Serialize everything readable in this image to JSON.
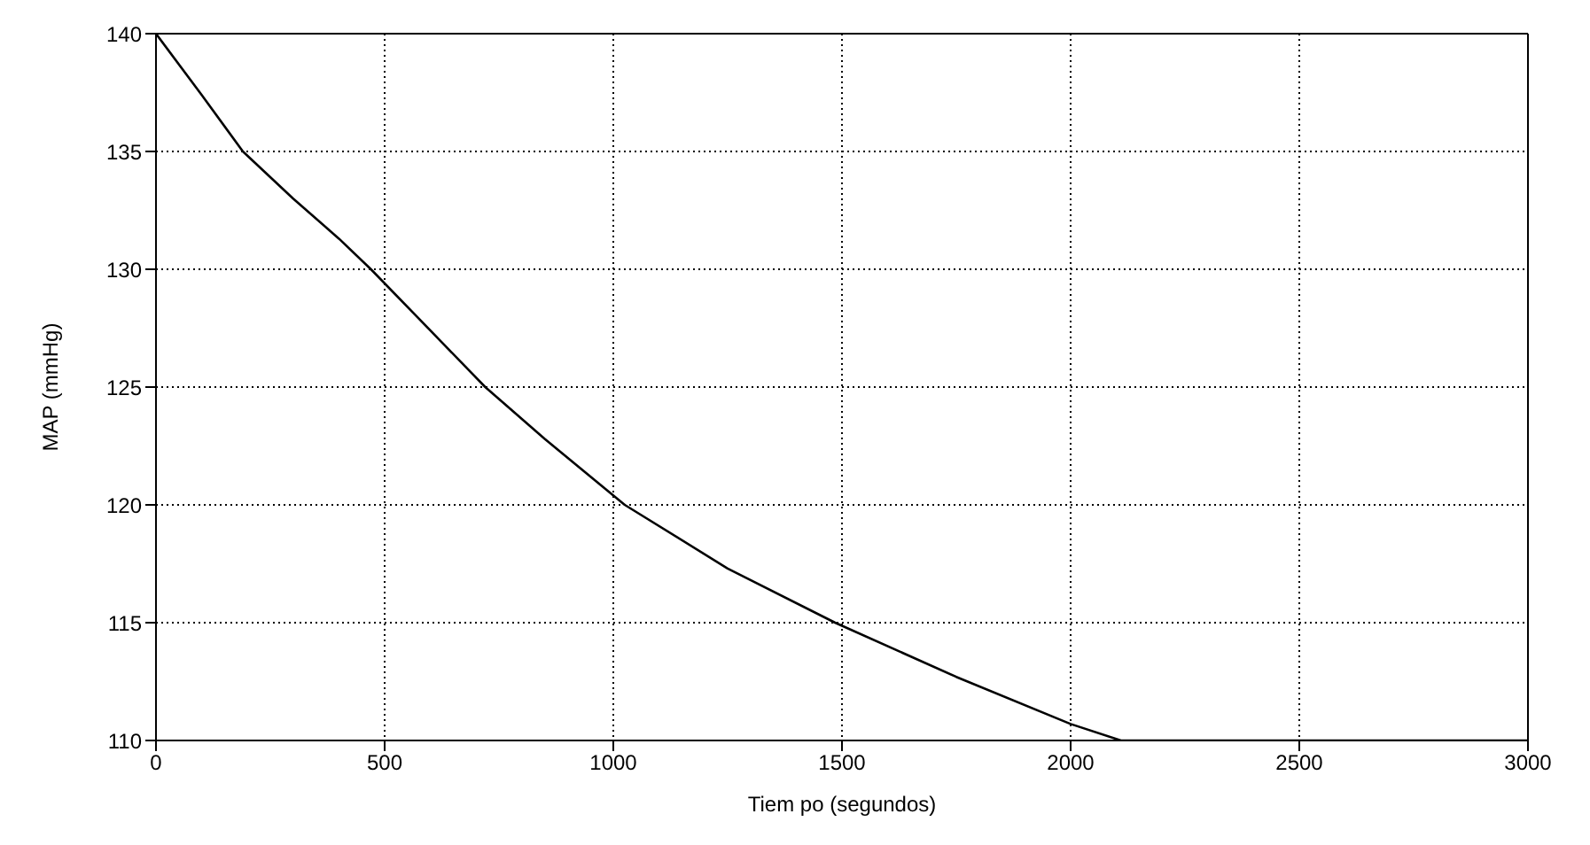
{
  "chart_data": {
    "type": "line",
    "xlabel": "Tiem po (segundos)",
    "ylabel": "MAP (mmHg)",
    "x": [
      0,
      100,
      190,
      300,
      400,
      470,
      600,
      720,
      850,
      1025,
      1250,
      1485,
      1750,
      2000,
      2110,
      2500,
      3000
    ],
    "series": [
      {
        "color": "#000000",
        "values": [
          140,
          137.4,
          135,
          133,
          131.3,
          130,
          127.4,
          125,
          122.8,
          120,
          117.3,
          115,
          112.7,
          110.7,
          110,
          110,
          110
        ]
      }
    ],
    "xlim": [
      0,
      3000
    ],
    "xticks": [
      0,
      500,
      1000,
      1500,
      2000,
      2500,
      3000
    ],
    "ylim": [
      110,
      140
    ],
    "yticks": [
      110,
      115,
      120,
      125,
      130,
      135,
      140
    ],
    "grid": true,
    "marker": "none",
    "line_style": "solid"
  }
}
